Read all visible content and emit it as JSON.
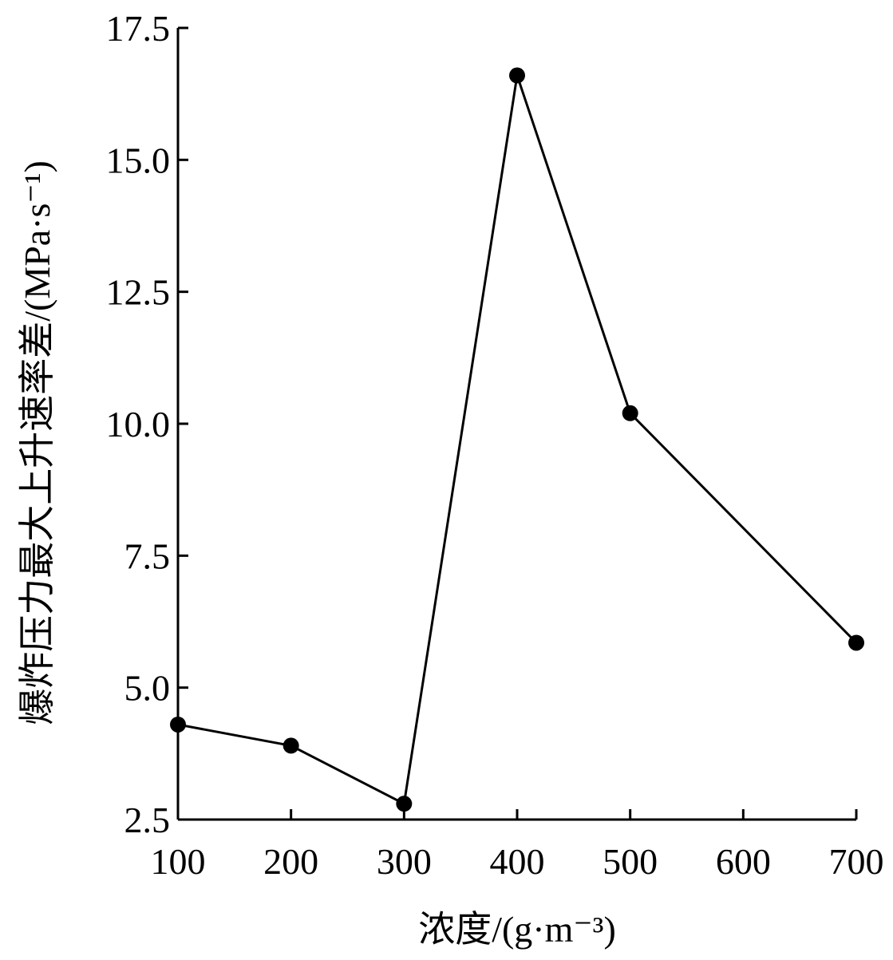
{
  "chart_data": {
    "type": "line",
    "title": "",
    "xlabel": "浓度/(g·m⁻³)",
    "ylabel": "爆炸压力最大上升速率差/(MPa·s⁻¹)",
    "xlim": [
      100,
      700
    ],
    "ylim": [
      2.5,
      17.5
    ],
    "x_ticks": [
      100,
      200,
      300,
      400,
      500,
      600,
      700
    ],
    "x_tick_labels": [
      "100",
      "200",
      "300",
      "400",
      "500",
      "600",
      "700"
    ],
    "y_ticks": [
      2.5,
      5.0,
      7.5,
      10.0,
      12.5,
      15.0,
      17.5
    ],
    "y_tick_labels": [
      "2.5",
      "5.0",
      "7.5",
      "10.0",
      "12.5",
      "15.0",
      "17.5"
    ],
    "grid": false,
    "legend": "none",
    "series": [
      {
        "x": [
          100,
          200,
          300,
          400,
          500,
          700
        ],
        "y": [
          4.3,
          3.9,
          2.8,
          16.6,
          10.2,
          5.85
        ],
        "color": "#000000",
        "marker": "circle"
      }
    ]
  }
}
